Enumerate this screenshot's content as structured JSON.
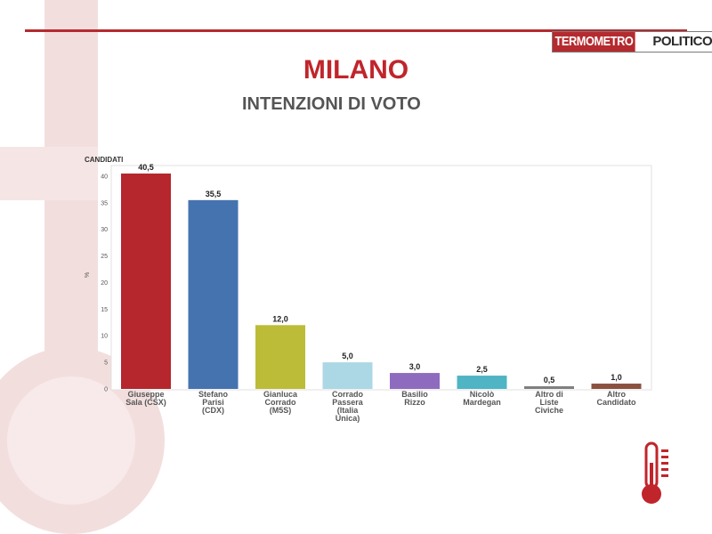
{
  "header": {
    "logo_left": "TERMOMETRO",
    "logo_right": "POLITICO",
    "title": "MILANO",
    "subtitle": "INTENZIONI DI VOTO"
  },
  "colors": {
    "brand_red": "#b52a2f",
    "title_red": "#c0252b",
    "deco_pink": "#f3dede"
  },
  "icons": {
    "thermometer": "thermometer-icon"
  },
  "chart_data": {
    "type": "bar",
    "title": "",
    "xlabel": "CANDIDATI",
    "ylabel": "%",
    "ylim": [
      0,
      42
    ],
    "yticks": [
      "0",
      "5",
      "10",
      "15",
      "20",
      "25",
      "30",
      "35",
      "40"
    ],
    "categories": [
      [
        "Giuseppe",
        "Sala (CSX)"
      ],
      [
        "Stefano",
        "Parisi",
        "(CDX)"
      ],
      [
        "Gianluca",
        "Corrado",
        "(M5S)"
      ],
      [
        "Corrado",
        "Passera",
        "(Italia",
        "Unica)"
      ],
      [
        "Basilio",
        "Rizzo"
      ],
      [
        "Nicolò",
        "Mardegan"
      ],
      [
        "Altro di",
        "Liste",
        "Civiche"
      ],
      [
        "Altro",
        "Candidato"
      ]
    ],
    "values": [
      40.5,
      35.5,
      12.0,
      5.0,
      3.0,
      2.5,
      0.5,
      1.0
    ],
    "value_labels": [
      "40,5",
      "35,5",
      "12,0",
      "5,0",
      "3,0",
      "2,5",
      "0,5",
      "1,0"
    ],
    "colors": [
      "#b5272d",
      "#4573b0",
      "#bcbc38",
      "#acd7e5",
      "#8f6bc0",
      "#4fb4c4",
      "#7f7f7f",
      "#8b5040"
    ],
    "grid": false,
    "legend": "none"
  }
}
